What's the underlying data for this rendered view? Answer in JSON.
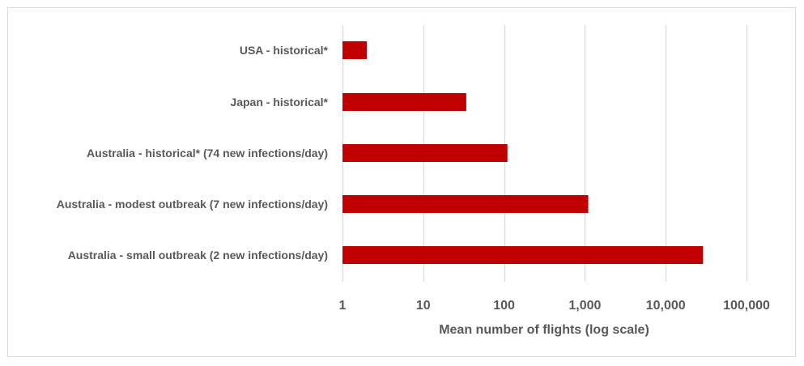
{
  "chart_data": {
    "type": "bar",
    "orientation": "horizontal",
    "x_scale": "log",
    "categories": [
      "USA - historical*",
      "Japan - historical*",
      "Australia - historical* (74 new infections/day)",
      "Australia - modest outbreak (7 new infections/day)",
      "Australia - small outbreak (2 new infections/day)"
    ],
    "values": [
      2,
      34,
      110,
      1100,
      29000
    ],
    "xlabel": "Mean number of flights (log scale)",
    "ylabel": "",
    "xlim": [
      1,
      100000
    ],
    "x_ticks": [
      1,
      10,
      100,
      1000,
      10000,
      100000
    ],
    "x_tick_labels": [
      "1",
      "10",
      "100",
      "1,000",
      "10,000",
      "100,000"
    ],
    "grid": "vertical",
    "legend": "none",
    "bar_color": "#c00000",
    "grid_color": "#d9d9d9",
    "text_color": "#595959"
  }
}
